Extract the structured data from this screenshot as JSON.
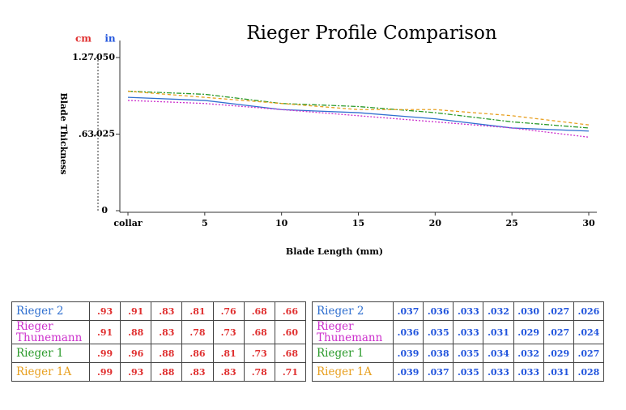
{
  "chart_data": {
    "type": "line",
    "title": "Rieger Profile Comparison",
    "y_unit": "in",
    "y2_unit": "cm",
    "ylabel": "Blade Thickness",
    "xlabel": "Blade Length (mm)",
    "x": [
      0,
      5,
      10,
      15,
      20,
      25,
      30
    ],
    "xlim": [
      0,
      30
    ],
    "xticks": [
      {
        "value": 0,
        "label": "collar"
      },
      5,
      10,
      15,
      20,
      25,
      30
    ],
    "ylim": [
      0,
      0.05
    ],
    "yticks": [
      {
        "value": 0.05,
        "label": ".050"
      },
      {
        "value": 0.025,
        "label": ".025"
      },
      0
    ],
    "y2lim": [
      0,
      1.27
    ],
    "y2ticks": [
      1.27,
      {
        "value": 0.63,
        "label": ".63"
      }
    ],
    "series": [
      {
        "name": "Rieger 2",
        "color": "#2f6fd0",
        "style": "solid",
        "values": [
          0.037,
          0.036,
          0.033,
          0.032,
          0.03,
          0.027,
          0.026
        ],
        "value_labels": [
          ".037",
          ".036",
          ".033",
          ".032",
          ".030",
          ".027",
          ".026"
        ]
      },
      {
        "name": "Rieger Thunemann",
        "color": "#cc2fcc",
        "style": "dotted",
        "values": [
          0.036,
          0.035,
          0.033,
          0.031,
          0.029,
          0.027,
          0.024
        ],
        "value_labels": [
          ".036",
          ".035",
          ".033",
          ".031",
          ".029",
          ".027",
          ".024"
        ]
      },
      {
        "name": "Rieger 1",
        "color": "#2a9a2a",
        "style": "dashdot",
        "values": [
          0.039,
          0.038,
          0.035,
          0.034,
          0.032,
          0.029,
          0.027
        ],
        "value_labels": [
          ".039",
          ".038",
          ".035",
          ".034",
          ".032",
          ".029",
          ".027"
        ]
      },
      {
        "name": "Rieger 1A",
        "color": "#e8a020",
        "style": "dashed",
        "values": [
          0.039,
          0.037,
          0.035,
          0.033,
          0.033,
          0.031,
          0.028
        ],
        "value_labels": [
          ".039",
          ".037",
          ".035",
          ".033",
          ".033",
          ".031",
          ".028"
        ]
      }
    ]
  },
  "cm_table": {
    "rows": [
      [
        ".93",
        ".91",
        ".83",
        ".81",
        ".76",
        ".68",
        ".66"
      ],
      [
        ".91",
        ".88",
        ".83",
        ".78",
        ".73",
        ".68",
        ".60"
      ],
      [
        ".99",
        ".96",
        ".88",
        ".86",
        ".81",
        ".73",
        ".68"
      ],
      [
        ".99",
        ".93",
        ".88",
        ".83",
        ".83",
        ".78",
        ".71"
      ]
    ]
  }
}
